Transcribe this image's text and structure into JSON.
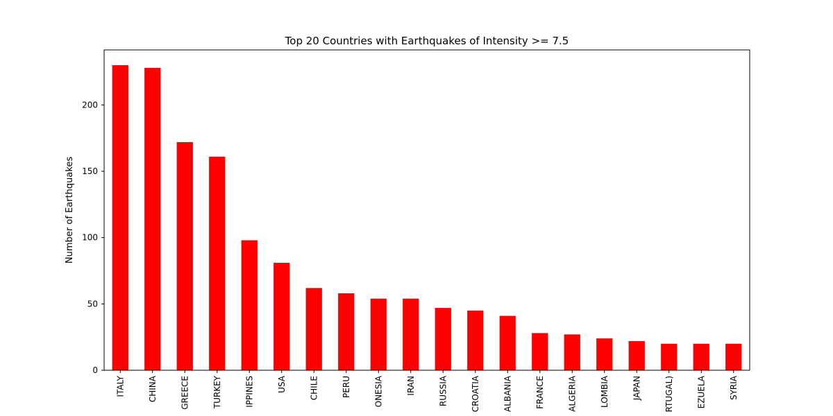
{
  "chart_data": {
    "type": "bar",
    "title": "Top 20 Countries with Earthquakes of Intensity >= 7.5",
    "xlabel": "",
    "ylabel": "Number of Earthquakes",
    "categories": [
      "ITALY",
      "CHINA",
      "GREECE",
      "TURKEY",
      "IPPINES",
      "USA",
      "CHILE",
      "PERU",
      "ONESIA",
      "IRAN",
      "RUSSIA",
      "CROATIA",
      "ALBANIA",
      "FRANCE",
      "ALGERIA",
      "LOMBIA",
      "JAPAN",
      "RTUGAL)",
      "EZUELA",
      "SYRIA"
    ],
    "values": [
      230,
      228,
      172,
      161,
      98,
      81,
      62,
      58,
      54,
      54,
      47,
      45,
      41,
      28,
      27,
      24,
      22,
      20,
      20,
      20
    ],
    "ylim": [
      0,
      241.5
    ],
    "yticks": [
      0,
      50,
      100,
      150,
      200
    ],
    "bar_color": "#ff0000",
    "grid": false,
    "legend": "none"
  }
}
